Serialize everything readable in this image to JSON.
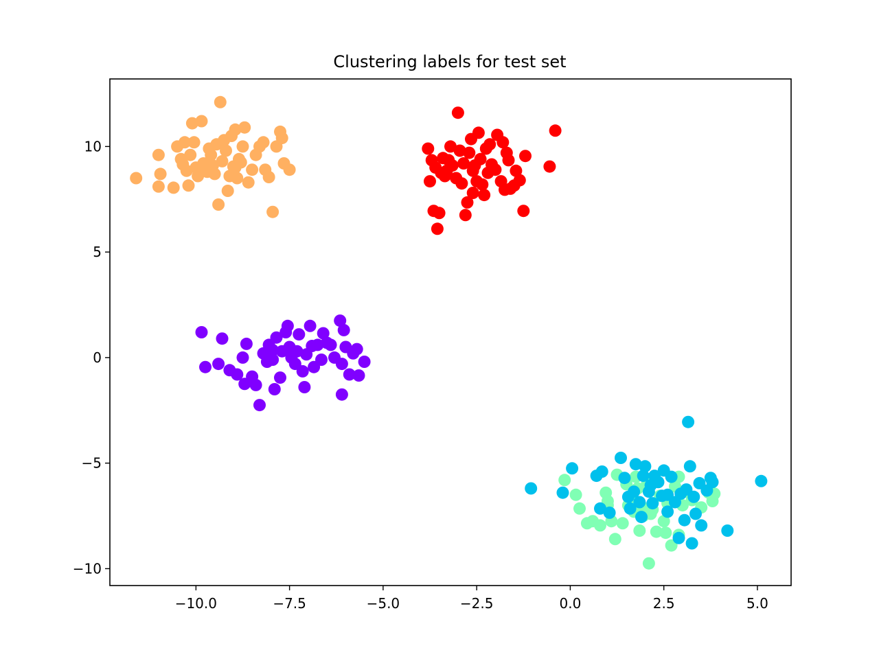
{
  "chart_data": {
    "type": "scatter",
    "title": "Clustering labels for test set",
    "xlabel": "",
    "ylabel": "",
    "xlim": [
      -12.3,
      5.9
    ],
    "ylim": [
      -10.8,
      13.2
    ],
    "xticks": [
      -10.0,
      -7.5,
      -5.0,
      -2.5,
      0.0,
      2.5,
      5.0
    ],
    "xtick_labels": [
      "−10.0",
      "−7.5",
      "−5.0",
      "−2.5",
      "0.0",
      "2.5",
      "5.0"
    ],
    "yticks": [
      -10,
      -5,
      0,
      5,
      10
    ],
    "ytick_labels": [
      "−10",
      "−5",
      "0",
      "5",
      "10"
    ],
    "grid": false,
    "legend": "none",
    "series": [
      {
        "color": "#ffb061",
        "points": [
          [
            -11.6,
            8.5
          ],
          [
            -11.0,
            9.6
          ],
          [
            -10.95,
            8.7
          ],
          [
            -11.0,
            8.1
          ],
          [
            -10.6,
            8.05
          ],
          [
            -10.5,
            10.0
          ],
          [
            -10.4,
            9.4
          ],
          [
            -10.3,
            10.2
          ],
          [
            -10.25,
            8.85
          ],
          [
            -10.2,
            8.15
          ],
          [
            -10.1,
            11.1
          ],
          [
            -10.05,
            10.2
          ],
          [
            -10.0,
            9.0
          ],
          [
            -9.95,
            8.6
          ],
          [
            -9.85,
            11.2
          ],
          [
            -9.8,
            9.2
          ],
          [
            -9.7,
            8.8
          ],
          [
            -9.65,
            9.9
          ],
          [
            -9.55,
            9.1
          ],
          [
            -9.5,
            8.7
          ],
          [
            -9.45,
            10.1
          ],
          [
            -9.4,
            7.25
          ],
          [
            -9.35,
            12.1
          ],
          [
            -9.3,
            9.3
          ],
          [
            -9.2,
            9.8
          ],
          [
            -9.15,
            7.9
          ],
          [
            -9.1,
            8.6
          ],
          [
            -9.05,
            10.5
          ],
          [
            -9.0,
            9.05
          ],
          [
            -8.95,
            10.8
          ],
          [
            -8.9,
            8.5
          ],
          [
            -8.85,
            9.4
          ],
          [
            -8.75,
            10.0
          ],
          [
            -8.7,
            10.9
          ],
          [
            -8.6,
            8.3
          ],
          [
            -8.5,
            8.9
          ],
          [
            -8.4,
            9.6
          ],
          [
            -8.3,
            10.0
          ],
          [
            -8.2,
            10.2
          ],
          [
            -8.15,
            8.9
          ],
          [
            -7.95,
            6.9
          ],
          [
            -7.85,
            10.0
          ],
          [
            -7.75,
            10.7
          ],
          [
            -7.65,
            9.2
          ],
          [
            -7.5,
            8.9
          ],
          [
            -8.95,
            9.0
          ],
          [
            -9.6,
            9.6
          ],
          [
            -10.15,
            9.6
          ],
          [
            -8.05,
            8.55
          ],
          [
            -9.25,
            10.3
          ],
          [
            -7.7,
            10.4
          ],
          [
            -9.75,
            9.15
          ],
          [
            -10.35,
            9.15
          ],
          [
            -8.8,
            9.25
          ]
        ]
      },
      {
        "color": "#ff0000",
        "points": [
          [
            -3.8,
            9.9
          ],
          [
            -3.75,
            8.35
          ],
          [
            -3.7,
            9.35
          ],
          [
            -3.65,
            6.95
          ],
          [
            -3.55,
            6.1
          ],
          [
            -3.5,
            6.85
          ],
          [
            -3.45,
            8.75
          ],
          [
            -3.4,
            9.45
          ],
          [
            -3.35,
            8.6
          ],
          [
            -3.3,
            8.85
          ],
          [
            -3.2,
            10.0
          ],
          [
            -3.15,
            9.1
          ],
          [
            -3.05,
            8.5
          ],
          [
            -3.0,
            11.6
          ],
          [
            -2.95,
            9.8
          ],
          [
            -2.9,
            8.25
          ],
          [
            -2.8,
            6.75
          ],
          [
            -2.75,
            7.35
          ],
          [
            -2.7,
            9.7
          ],
          [
            -2.65,
            10.35
          ],
          [
            -2.6,
            7.8
          ],
          [
            -2.55,
            9.1
          ],
          [
            -2.5,
            8.35
          ],
          [
            -2.45,
            10.65
          ],
          [
            -2.4,
            9.4
          ],
          [
            -2.35,
            8.2
          ],
          [
            -2.3,
            7.7
          ],
          [
            -2.25,
            9.9
          ],
          [
            -2.2,
            8.75
          ],
          [
            -2.1,
            9.15
          ],
          [
            -2.0,
            8.9
          ],
          [
            -1.95,
            10.55
          ],
          [
            -1.85,
            8.35
          ],
          [
            -1.8,
            10.2
          ],
          [
            -1.75,
            7.95
          ],
          [
            -1.7,
            9.7
          ],
          [
            -1.65,
            9.35
          ],
          [
            -1.6,
            8.0
          ],
          [
            -1.5,
            8.15
          ],
          [
            -1.45,
            8.85
          ],
          [
            -1.35,
            8.4
          ],
          [
            -1.25,
            6.95
          ],
          [
            -1.2,
            9.55
          ],
          [
            -0.55,
            9.05
          ],
          [
            -0.4,
            10.75
          ],
          [
            -2.85,
            9.2
          ],
          [
            -3.6,
            9.0
          ],
          [
            -2.15,
            10.1
          ],
          [
            -2.6,
            8.85
          ],
          [
            -3.25,
            9.35
          ]
        ]
      },
      {
        "color": "#8000ff",
        "points": [
          [
            -9.85,
            1.2
          ],
          [
            -9.75,
            -0.45
          ],
          [
            -9.4,
            -0.3
          ],
          [
            -9.3,
            0.9
          ],
          [
            -9.1,
            -0.6
          ],
          [
            -8.9,
            -0.8
          ],
          [
            -8.75,
            0.0
          ],
          [
            -8.7,
            -1.25
          ],
          [
            -8.65,
            0.65
          ],
          [
            -8.5,
            -0.9
          ],
          [
            -8.4,
            -1.3
          ],
          [
            -8.3,
            -2.25
          ],
          [
            -8.2,
            0.2
          ],
          [
            -8.1,
            -0.2
          ],
          [
            -8.05,
            0.6
          ],
          [
            -7.95,
            -0.1
          ],
          [
            -7.9,
            -1.5
          ],
          [
            -7.85,
            0.95
          ],
          [
            -7.75,
            -0.95
          ],
          [
            -7.7,
            0.3
          ],
          [
            -7.6,
            1.2
          ],
          [
            -7.55,
            1.5
          ],
          [
            -7.45,
            0.0
          ],
          [
            -7.35,
            -0.3
          ],
          [
            -7.3,
            0.3
          ],
          [
            -7.25,
            1.1
          ],
          [
            -7.15,
            -0.65
          ],
          [
            -7.1,
            -1.4
          ],
          [
            -7.05,
            0.15
          ],
          [
            -6.95,
            1.5
          ],
          [
            -6.85,
            -0.45
          ],
          [
            -6.75,
            0.6
          ],
          [
            -6.65,
            -0.1
          ],
          [
            -6.6,
            1.15
          ],
          [
            -6.5,
            0.7
          ],
          [
            -6.4,
            0.6
          ],
          [
            -6.3,
            0.0
          ],
          [
            -6.15,
            1.75
          ],
          [
            -6.1,
            -0.3
          ],
          [
            -6.05,
            1.3
          ],
          [
            -6.0,
            0.5
          ],
          [
            -5.9,
            -0.8
          ],
          [
            -5.8,
            0.2
          ],
          [
            -5.7,
            0.4
          ],
          [
            -5.65,
            -0.85
          ],
          [
            -5.5,
            -0.2
          ],
          [
            -6.1,
            -1.75
          ],
          [
            -7.95,
            0.35
          ],
          [
            -7.5,
            0.5
          ],
          [
            -6.9,
            0.55
          ]
        ]
      },
      {
        "color": "#80ffb4",
        "points": [
          [
            -0.15,
            -5.8
          ],
          [
            0.15,
            -6.5
          ],
          [
            0.25,
            -7.15
          ],
          [
            0.45,
            -7.85
          ],
          [
            0.6,
            -7.75
          ],
          [
            0.8,
            -7.95
          ],
          [
            0.95,
            -6.4
          ],
          [
            1.0,
            -7.0
          ],
          [
            1.1,
            -7.75
          ],
          [
            1.2,
            -8.6
          ],
          [
            1.25,
            -5.55
          ],
          [
            1.4,
            -7.85
          ],
          [
            1.55,
            -7.0
          ],
          [
            1.65,
            -6.8
          ],
          [
            1.7,
            -7.3
          ],
          [
            1.75,
            -5.65
          ],
          [
            1.8,
            -6.2
          ],
          [
            1.85,
            -8.2
          ],
          [
            1.95,
            -7.5
          ],
          [
            2.05,
            -6.0
          ],
          [
            2.1,
            -9.75
          ],
          [
            2.2,
            -7.2
          ],
          [
            2.3,
            -8.25
          ],
          [
            2.4,
            -6.55
          ],
          [
            2.5,
            -7.75
          ],
          [
            2.6,
            -6.9
          ],
          [
            2.7,
            -8.9
          ],
          [
            2.8,
            -6.1
          ],
          [
            2.9,
            -8.4
          ],
          [
            3.0,
            -7.0
          ],
          [
            3.1,
            -6.35
          ],
          [
            3.25,
            -6.75
          ],
          [
            3.5,
            -7.1
          ],
          [
            3.7,
            -6.4
          ],
          [
            3.8,
            -6.8
          ],
          [
            3.85,
            -6.45
          ],
          [
            1.0,
            -6.8
          ],
          [
            2.15,
            -7.4
          ],
          [
            2.55,
            -8.3
          ],
          [
            1.5,
            -6.0
          ],
          [
            2.9,
            -5.65
          ],
          [
            1.9,
            -7.05
          ]
        ]
      },
      {
        "color": "#00c0ec",
        "points": [
          [
            -1.05,
            -6.2
          ],
          [
            -0.2,
            -6.4
          ],
          [
            0.05,
            -5.25
          ],
          [
            0.7,
            -5.6
          ],
          [
            0.8,
            -7.15
          ],
          [
            0.85,
            -5.4
          ],
          [
            1.05,
            -7.35
          ],
          [
            1.35,
            -4.75
          ],
          [
            1.45,
            -5.7
          ],
          [
            1.55,
            -6.6
          ],
          [
            1.6,
            -7.15
          ],
          [
            1.7,
            -6.35
          ],
          [
            1.75,
            -5.05
          ],
          [
            1.85,
            -6.85
          ],
          [
            1.9,
            -7.55
          ],
          [
            2.0,
            -5.15
          ],
          [
            2.1,
            -6.35
          ],
          [
            2.2,
            -6.9
          ],
          [
            2.25,
            -5.6
          ],
          [
            2.35,
            -5.9
          ],
          [
            2.45,
            -6.55
          ],
          [
            2.5,
            -5.35
          ],
          [
            2.6,
            -7.3
          ],
          [
            2.7,
            -5.65
          ],
          [
            2.8,
            -6.85
          ],
          [
            2.9,
            -8.55
          ],
          [
            2.95,
            -6.45
          ],
          [
            3.05,
            -7.7
          ],
          [
            3.1,
            -6.25
          ],
          [
            3.15,
            -3.05
          ],
          [
            3.2,
            -5.15
          ],
          [
            3.25,
            -8.8
          ],
          [
            3.3,
            -6.6
          ],
          [
            3.35,
            -7.4
          ],
          [
            3.45,
            -5.95
          ],
          [
            3.5,
            -7.95
          ],
          [
            3.65,
            -6.3
          ],
          [
            3.75,
            -5.7
          ],
          [
            3.8,
            -5.9
          ],
          [
            4.2,
            -8.2
          ],
          [
            5.1,
            -5.85
          ],
          [
            2.15,
            -6.05
          ],
          [
            1.95,
            -5.6
          ],
          [
            2.6,
            -6.5
          ]
        ]
      }
    ]
  }
}
